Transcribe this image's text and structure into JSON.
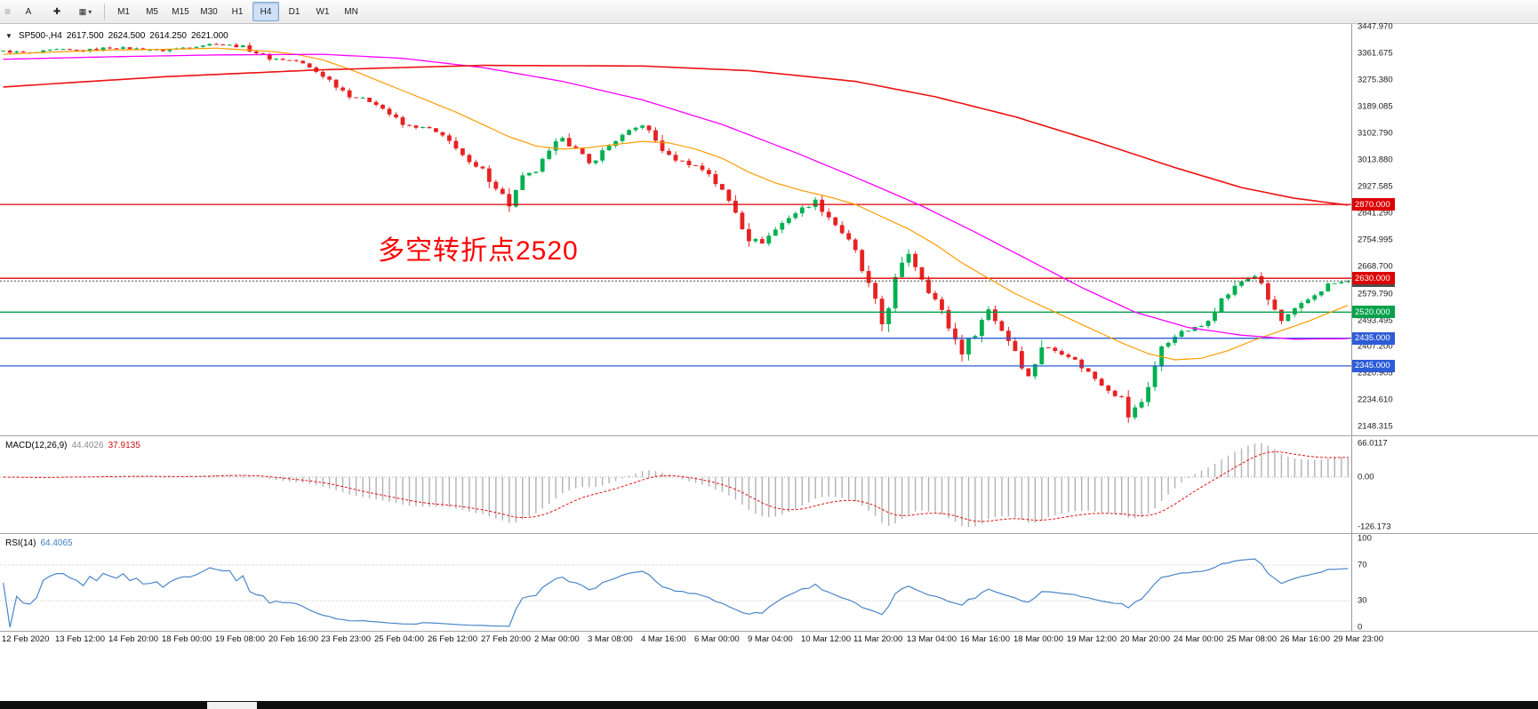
{
  "toolbar": {
    "tools": [
      {
        "name": "toolbar-grip-icon",
        "glyph": "≡"
      },
      {
        "name": "text-tool-button",
        "glyph": "A"
      },
      {
        "name": "crosshair-tool-button",
        "glyph": "✚"
      },
      {
        "name": "objects-dropdown-button",
        "glyph": "▾"
      }
    ],
    "timeframes": [
      {
        "label": "M1",
        "active": false
      },
      {
        "label": "M5",
        "active": false
      },
      {
        "label": "M15",
        "active": false
      },
      {
        "label": "M30",
        "active": false
      },
      {
        "label": "H1",
        "active": false
      },
      {
        "label": "H4",
        "active": true
      },
      {
        "label": "D1",
        "active": false
      },
      {
        "label": "W1",
        "active": false
      },
      {
        "label": "MN",
        "active": false
      }
    ]
  },
  "chart": {
    "header": {
      "symbol": "SP500-,H4",
      "open": "2617.500",
      "high": "2624.500",
      "low": "2614.250",
      "close": "2621.000"
    },
    "annotation": {
      "text": "多空转折点2520",
      "color": "#ff0000"
    },
    "price_axis": {
      "top": 3447.97,
      "bottom": 2148.315,
      "labels": [
        "3447.970",
        "3361.675",
        "3275.380",
        "3189.085",
        "3102.790",
        "3013.880",
        "2927.585",
        "2841.290",
        "2754.995",
        "2668.700",
        "2579.790",
        "2493.495",
        "2407.200",
        "2320.905",
        "2234.610",
        "2148.315"
      ]
    },
    "levels": [
      {
        "price": 2870,
        "label": "2870.000",
        "color": "#dd0000",
        "style": "solid",
        "current": false
      },
      {
        "price": 2630,
        "label": "2630.000",
        "color": "#dd0000",
        "style": "solid",
        "current": false
      },
      {
        "price": 2621,
        "label": "2621.000",
        "color": "#4d4d4d",
        "style": "dotted",
        "current": true
      },
      {
        "price": 2520,
        "label": "2520.000",
        "color": "#00a14b",
        "style": "solid",
        "current": false
      },
      {
        "price": 2435,
        "label": "2435.000",
        "color": "#2e5bd7",
        "style": "solid",
        "current": false
      },
      {
        "price": 2345,
        "label": "2345.000",
        "color": "#2e5bd7",
        "style": "solid",
        "current": false
      }
    ]
  },
  "chart_data": {
    "type": "candlestick",
    "symbol": "SP500-",
    "timeframe": "H4",
    "title": "SP500-,H4 2617.500 2624.500 2614.250 2621.000",
    "bars": 203,
    "ylim": [
      2148.315,
      3447.97
    ],
    "up_color": "#00b050",
    "down_color": "#e62222",
    "last_bar": {
      "open": 2617.5,
      "high": 2624.5,
      "low": 2614.25,
      "close": 2621.0
    },
    "close_anchors": [
      [
        0,
        3368
      ],
      [
        4,
        3362
      ],
      [
        8,
        3373
      ],
      [
        12,
        3370
      ],
      [
        16,
        3380
      ],
      [
        20,
        3376
      ],
      [
        24,
        3370
      ],
      [
        28,
        3383
      ],
      [
        32,
        3393
      ],
      [
        36,
        3382
      ],
      [
        40,
        3345
      ],
      [
        44,
        3337
      ],
      [
        48,
        3290
      ],
      [
        52,
        3225
      ],
      [
        56,
        3200
      ],
      [
        60,
        3128
      ],
      [
        64,
        3116
      ],
      [
        68,
        3060
      ],
      [
        70,
        3000
      ],
      [
        72,
        2980
      ],
      [
        74,
        2930
      ],
      [
        76,
        2866
      ],
      [
        78,
        2954
      ],
      [
        80,
        2980
      ],
      [
        84,
        3090
      ],
      [
        88,
        3003
      ],
      [
        92,
        3080
      ],
      [
        96,
        3130
      ],
      [
        100,
        3024
      ],
      [
        104,
        2995
      ],
      [
        106,
        2972
      ],
      [
        110,
        2850
      ],
      [
        112,
        2760
      ],
      [
        114,
        2747
      ],
      [
        118,
        2830
      ],
      [
        122,
        2882
      ],
      [
        126,
        2780
      ],
      [
        128,
        2710
      ],
      [
        130,
        2600
      ],
      [
        132,
        2481
      ],
      [
        134,
        2620
      ],
      [
        136,
        2711
      ],
      [
        140,
        2560
      ],
      [
        144,
        2386
      ],
      [
        148,
        2529
      ],
      [
        152,
        2398
      ],
      [
        154,
        2310
      ],
      [
        156,
        2409
      ],
      [
        160,
        2380
      ],
      [
        164,
        2305
      ],
      [
        168,
        2237
      ],
      [
        169,
        2180
      ],
      [
        171,
        2230
      ],
      [
        174,
        2400
      ],
      [
        176,
        2447
      ],
      [
        180,
        2475
      ],
      [
        183,
        2560
      ],
      [
        186,
        2620
      ],
      [
        188,
        2640
      ],
      [
        190,
        2560
      ],
      [
        192,
        2490
      ],
      [
        196,
        2560
      ],
      [
        199,
        2610
      ],
      [
        202,
        2621
      ]
    ],
    "moving_averages": [
      {
        "name": "ma-fast-orange",
        "color": "#ff9c00",
        "width": 1.2,
        "anchors": [
          [
            0,
            3358
          ],
          [
            8,
            3366
          ],
          [
            16,
            3372
          ],
          [
            24,
            3374
          ],
          [
            32,
            3378
          ],
          [
            40,
            3368
          ],
          [
            44,
            3358
          ],
          [
            48,
            3340
          ],
          [
            52,
            3310
          ],
          [
            56,
            3275
          ],
          [
            60,
            3240
          ],
          [
            64,
            3205
          ],
          [
            68,
            3170
          ],
          [
            72,
            3130
          ],
          [
            76,
            3090
          ],
          [
            80,
            3060
          ],
          [
            84,
            3050
          ],
          [
            88,
            3055
          ],
          [
            92,
            3065
          ],
          [
            96,
            3075
          ],
          [
            100,
            3070
          ],
          [
            104,
            3050
          ],
          [
            108,
            3020
          ],
          [
            112,
            2975
          ],
          [
            116,
            2940
          ],
          [
            120,
            2915
          ],
          [
            124,
            2895
          ],
          [
            128,
            2870
          ],
          [
            132,
            2830
          ],
          [
            136,
            2790
          ],
          [
            140,
            2740
          ],
          [
            144,
            2680
          ],
          [
            148,
            2630
          ],
          [
            152,
            2580
          ],
          [
            156,
            2540
          ],
          [
            160,
            2500
          ],
          [
            164,
            2460
          ],
          [
            168,
            2420
          ],
          [
            172,
            2385
          ],
          [
            176,
            2365
          ],
          [
            180,
            2370
          ],
          [
            184,
            2395
          ],
          [
            188,
            2430
          ],
          [
            192,
            2460
          ],
          [
            196,
            2490
          ],
          [
            200,
            2525
          ],
          [
            202,
            2542
          ]
        ]
      },
      {
        "name": "ma-mid-magenta",
        "color": "#ff00ff",
        "width": 1.3,
        "anchors": [
          [
            0,
            3342
          ],
          [
            16,
            3350
          ],
          [
            32,
            3356
          ],
          [
            48,
            3358
          ],
          [
            60,
            3345
          ],
          [
            72,
            3315
          ],
          [
            84,
            3270
          ],
          [
            96,
            3210
          ],
          [
            108,
            3130
          ],
          [
            120,
            3030
          ],
          [
            130,
            2940
          ],
          [
            138,
            2865
          ],
          [
            146,
            2780
          ],
          [
            154,
            2690
          ],
          [
            162,
            2600
          ],
          [
            170,
            2520
          ],
          [
            178,
            2470
          ],
          [
            186,
            2445
          ],
          [
            194,
            2432
          ],
          [
            202,
            2434
          ]
        ]
      },
      {
        "name": "ma-slow-red",
        "color": "#ee1111",
        "width": 1.6,
        "anchors": [
          [
            0,
            3252
          ],
          [
            24,
            3285
          ],
          [
            48,
            3308
          ],
          [
            72,
            3322
          ],
          [
            96,
            3320
          ],
          [
            112,
            3305
          ],
          [
            128,
            3270
          ],
          [
            140,
            3220
          ],
          [
            152,
            3155
          ],
          [
            164,
            3075
          ],
          [
            176,
            2990
          ],
          [
            186,
            2925
          ],
          [
            194,
            2890
          ],
          [
            202,
            2868
          ]
        ]
      }
    ]
  },
  "macd": {
    "label": "MACD(12,26,9)",
    "value": "44.4026",
    "signal_value": "37.9135",
    "scale_labels": [
      "66.0117",
      "0.00",
      "-126.173"
    ],
    "histogram_color": "#b2b2b2",
    "signal_color": "#e01111",
    "fast": 12,
    "slow": 26,
    "signal": 9
  },
  "rsi": {
    "label": "RSI(14)",
    "value": "64.4065",
    "period": 14,
    "levels": [
      70,
      30
    ],
    "scale_labels": [
      "100",
      "70",
      "30",
      "0"
    ],
    "line_color": "#4a86c8"
  },
  "time_axis": {
    "labels": [
      "12 Feb 2020",
      "13 Feb 12:00",
      "14 Feb 20:00",
      "18 Feb 00:00",
      "19 Feb 08:00",
      "20 Feb 16:00",
      "23 Feb 23:00",
      "25 Feb 04:00",
      "26 Feb 12:00",
      "27 Feb 20:00",
      "2 Mar 00:00",
      "3 Mar 08:00",
      "4 Mar 16:00",
      "6 Mar 00:00",
      "9 Mar 04:00",
      "10 Mar 12:00",
      "11 Mar 20:00",
      "13 Mar 04:00",
      "16 Mar 16:00",
      "18 Mar 00:00",
      "19 Mar 12:00",
      "20 Mar 20:00",
      "24 Mar 00:00",
      "25 Mar 08:00",
      "26 Mar 16:00",
      "29 Mar 23:00"
    ]
  }
}
